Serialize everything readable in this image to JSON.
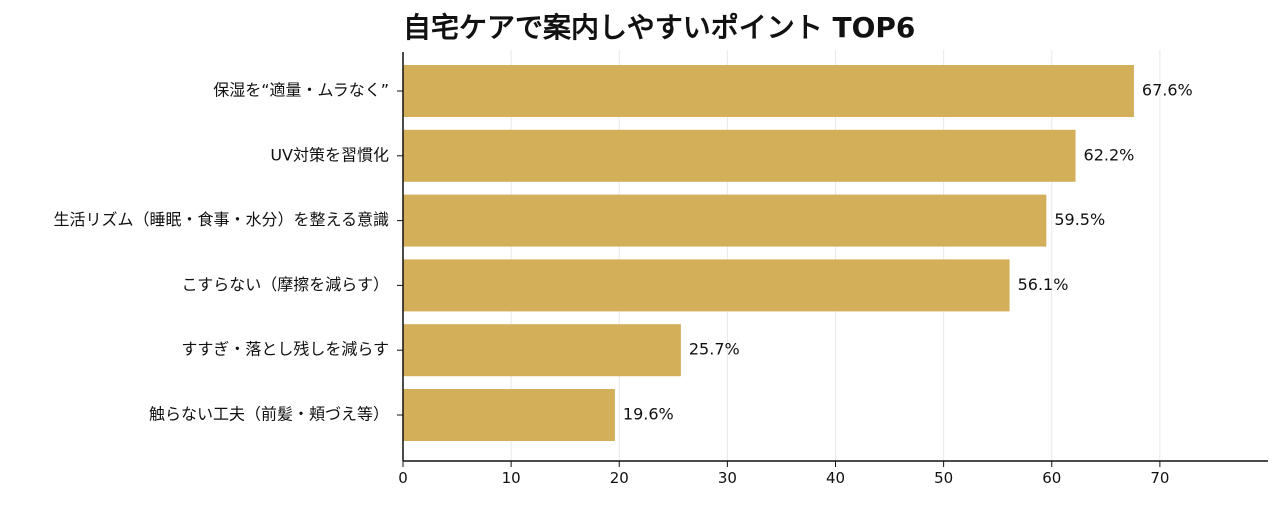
{
  "chart_data": {
    "type": "bar",
    "orientation": "horizontal",
    "title": "自宅ケアで案内しやすいポイント TOP6",
    "xlabel": "",
    "ylabel": "",
    "categories": [
      "保湿を“適量・ムラなく”",
      "UV対策を習慣化",
      "生活リズム（睡眠・食事・水分）を整える意識",
      "こすらない（摩擦を減らす）",
      "すすぎ・落とし残しを減らす",
      "触らない工夫（前髪・頬づえ等）"
    ],
    "values": [
      67.6,
      62.2,
      59.5,
      56.1,
      25.7,
      19.6
    ],
    "value_labels": [
      "67.6%",
      "62.2%",
      "59.5%",
      "56.1%",
      "25.7%",
      "19.6%"
    ],
    "xlim": [
      0,
      80
    ],
    "xticks": [
      0,
      10,
      20,
      30,
      40,
      50,
      60,
      70
    ],
    "xtick_labels": [
      "0",
      "10",
      "20",
      "30",
      "40",
      "50",
      "60",
      "70"
    ],
    "grid": "vertical",
    "legend": "none",
    "colors": {
      "bar": "#D4AF5A",
      "grid": "#E8E8E8",
      "axis": "#111111",
      "text": "#111111"
    }
  }
}
